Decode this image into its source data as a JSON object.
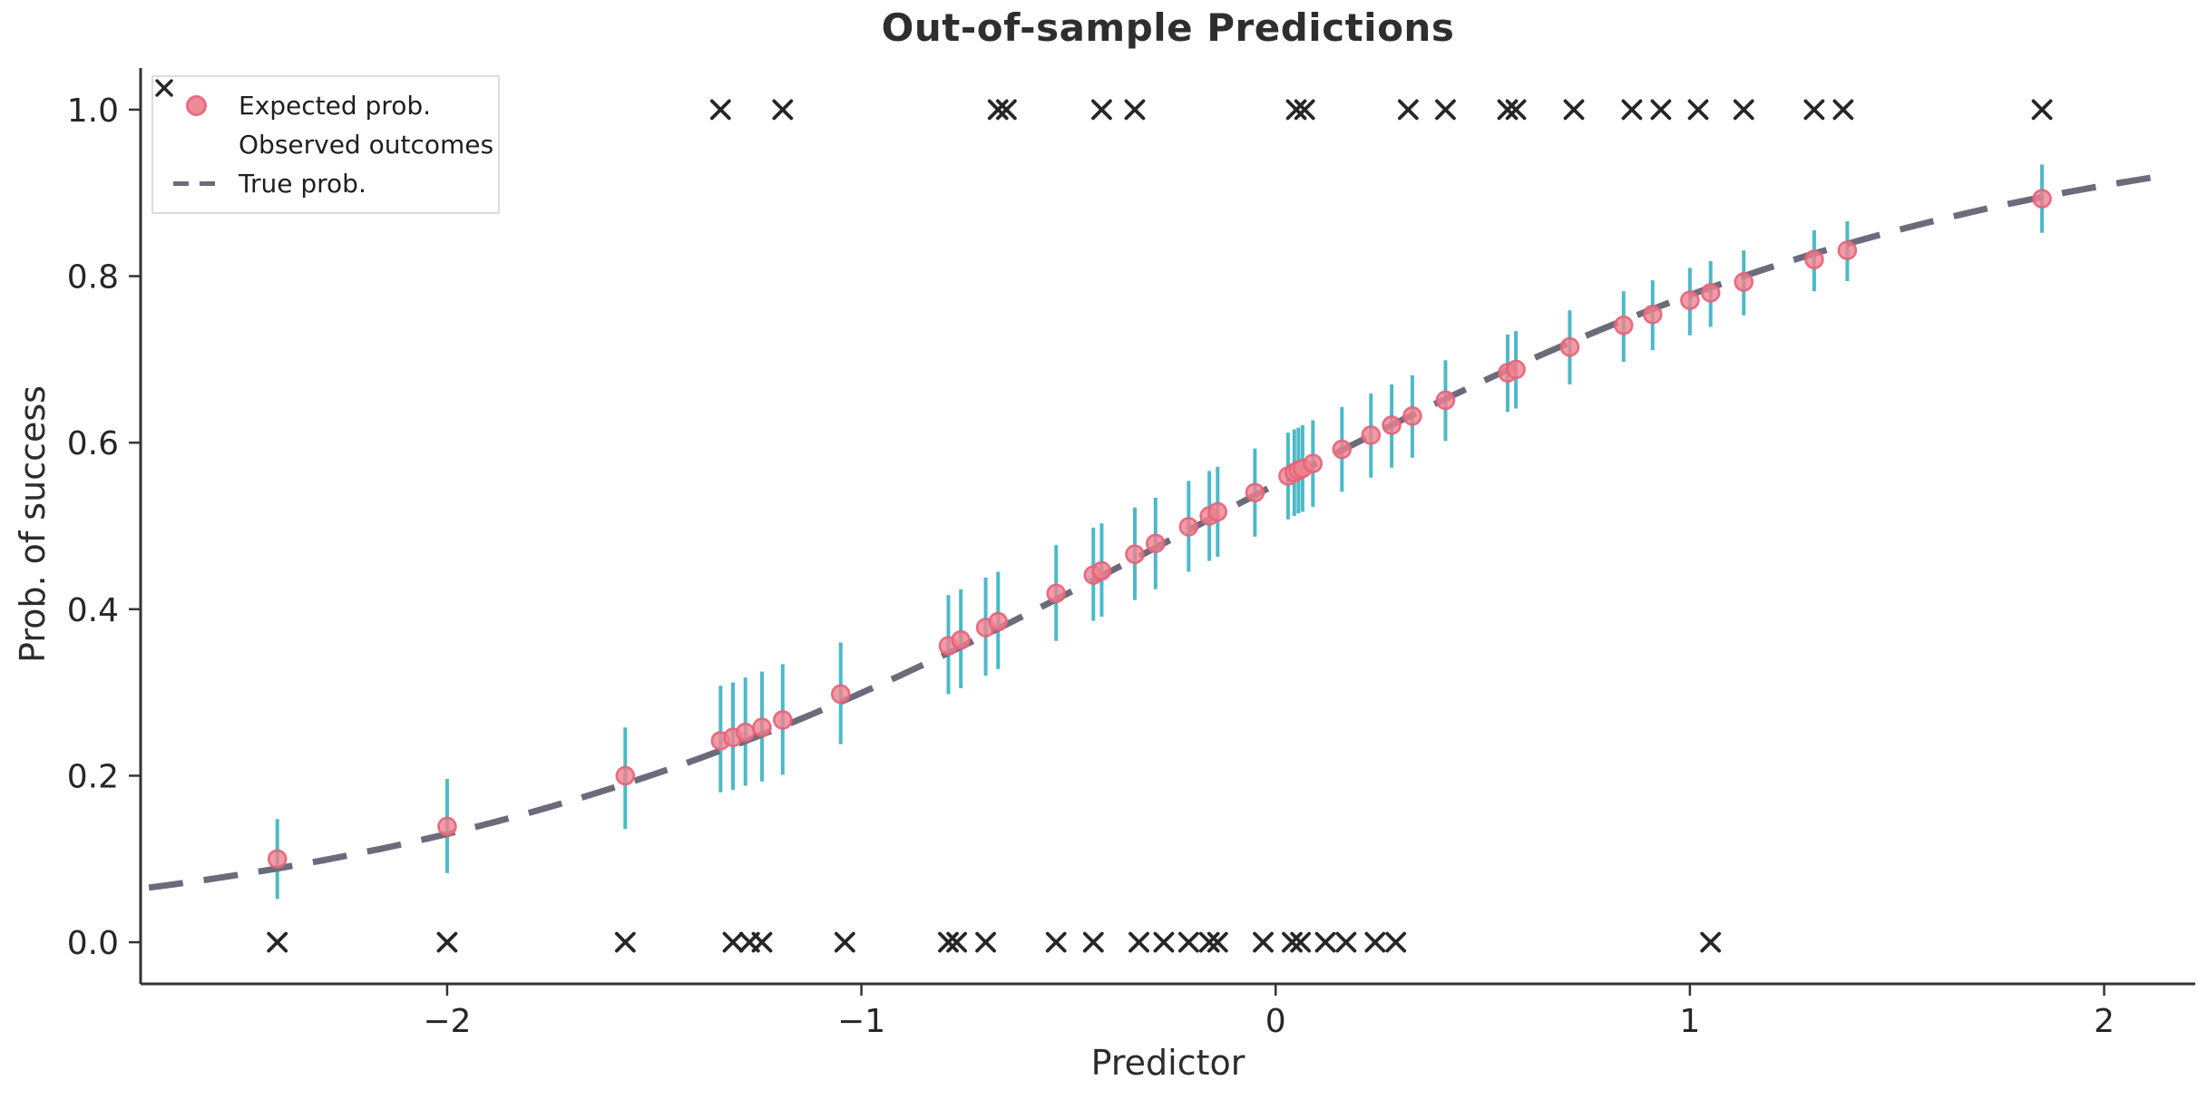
{
  "title": "Out-of-sample Predictions",
  "x_axis": {
    "label": "Predictor",
    "ticks": [
      -2,
      -1,
      0,
      1,
      2
    ]
  },
  "y_axis": {
    "label": "Prob. of success",
    "tick_labels": [
      "0.0",
      "0.2",
      "0.4",
      "0.6",
      "0.8",
      "1.0"
    ],
    "tick_values": [
      0,
      0.2,
      0.4,
      0.6,
      0.8,
      1.0
    ]
  },
  "legend": {
    "items": [
      {
        "icon": "dot-icon",
        "label": "Expected prob."
      },
      {
        "icon": "x-icon",
        "label": "Observed outcomes"
      },
      {
        "icon": "dashed-line-icon",
        "label": "True prob."
      }
    ]
  },
  "colors": {
    "expected_dot_fill": "#f0818f",
    "expected_dot_edge": "#e4627a",
    "error_bar": "#4db9c9",
    "true_curve": "#6a6c7b",
    "observed_x": "#262626",
    "axis": "#333333",
    "tick_label": "#262626"
  },
  "chart_data": {
    "type": "scatter",
    "title": "Out-of-sample Predictions",
    "xlabel": "Predictor",
    "ylabel": "Prob. of success",
    "xlim": [
      -2.74,
      2.22
    ],
    "ylim": [
      -0.05,
      1.05
    ],
    "grid": false,
    "legend_position": "upper left",
    "series": [
      {
        "name": "Expected prob.",
        "type": "scatter-errorbar",
        "points": [
          {
            "x": -2.41,
            "y": 0.1,
            "lo": 0.052,
            "hi": 0.148
          },
          {
            "x": -2.0,
            "y": 0.139,
            "lo": 0.083,
            "hi": 0.196
          },
          {
            "x": -1.57,
            "y": 0.2,
            "lo": 0.136,
            "hi": 0.258
          },
          {
            "x": -1.34,
            "y": 0.242,
            "lo": 0.18,
            "hi": 0.308
          },
          {
            "x": -1.31,
            "y": 0.246,
            "lo": 0.183,
            "hi": 0.312
          },
          {
            "x": -1.28,
            "y": 0.252,
            "lo": 0.188,
            "hi": 0.318
          },
          {
            "x": -1.24,
            "y": 0.258,
            "lo": 0.193,
            "hi": 0.325
          },
          {
            "x": -1.19,
            "y": 0.267,
            "lo": 0.201,
            "hi": 0.334
          },
          {
            "x": -1.05,
            "y": 0.298,
            "lo": 0.238,
            "hi": 0.36
          },
          {
            "x": -0.79,
            "y": 0.356,
            "lo": 0.298,
            "hi": 0.417
          },
          {
            "x": -0.76,
            "y": 0.363,
            "lo": 0.305,
            "hi": 0.424
          },
          {
            "x": -0.7,
            "y": 0.378,
            "lo": 0.32,
            "hi": 0.438
          },
          {
            "x": -0.67,
            "y": 0.385,
            "lo": 0.328,
            "hi": 0.445
          },
          {
            "x": -0.53,
            "y": 0.419,
            "lo": 0.362,
            "hi": 0.477
          },
          {
            "x": -0.44,
            "y": 0.441,
            "lo": 0.386,
            "hi": 0.498
          },
          {
            "x": -0.42,
            "y": 0.446,
            "lo": 0.391,
            "hi": 0.503
          },
          {
            "x": -0.34,
            "y": 0.466,
            "lo": 0.411,
            "hi": 0.522
          },
          {
            "x": -0.29,
            "y": 0.479,
            "lo": 0.424,
            "hi": 0.534
          },
          {
            "x": -0.21,
            "y": 0.499,
            "lo": 0.445,
            "hi": 0.554
          },
          {
            "x": -0.16,
            "y": 0.512,
            "lo": 0.458,
            "hi": 0.566
          },
          {
            "x": -0.14,
            "y": 0.517,
            "lo": 0.463,
            "hi": 0.571
          },
          {
            "x": -0.05,
            "y": 0.54,
            "lo": 0.487,
            "hi": 0.593
          },
          {
            "x": 0.03,
            "y": 0.56,
            "lo": 0.508,
            "hi": 0.612
          },
          {
            "x": 0.045,
            "y": 0.564,
            "lo": 0.512,
            "hi": 0.616
          },
          {
            "x": 0.055,
            "y": 0.567,
            "lo": 0.515,
            "hi": 0.618
          },
          {
            "x": 0.065,
            "y": 0.569,
            "lo": 0.517,
            "hi": 0.621
          },
          {
            "x": 0.09,
            "y": 0.575,
            "lo": 0.523,
            "hi": 0.627
          },
          {
            "x": 0.16,
            "y": 0.592,
            "lo": 0.541,
            "hi": 0.643
          },
          {
            "x": 0.23,
            "y": 0.609,
            "lo": 0.558,
            "hi": 0.659
          },
          {
            "x": 0.28,
            "y": 0.621,
            "lo": 0.57,
            "hi": 0.67
          },
          {
            "x": 0.33,
            "y": 0.632,
            "lo": 0.582,
            "hi": 0.681
          },
          {
            "x": 0.41,
            "y": 0.651,
            "lo": 0.602,
            "hi": 0.699
          },
          {
            "x": 0.56,
            "y": 0.684,
            "lo": 0.637,
            "hi": 0.73
          },
          {
            "x": 0.58,
            "y": 0.688,
            "lo": 0.641,
            "hi": 0.734
          },
          {
            "x": 0.71,
            "y": 0.715,
            "lo": 0.67,
            "hi": 0.759
          },
          {
            "x": 0.84,
            "y": 0.741,
            "lo": 0.697,
            "hi": 0.782
          },
          {
            "x": 0.91,
            "y": 0.754,
            "lo": 0.711,
            "hi": 0.795
          },
          {
            "x": 1.0,
            "y": 0.771,
            "lo": 0.729,
            "hi": 0.81
          },
          {
            "x": 1.05,
            "y": 0.78,
            "lo": 0.739,
            "hi": 0.818
          },
          {
            "x": 1.13,
            "y": 0.793,
            "lo": 0.753,
            "hi": 0.831
          },
          {
            "x": 1.3,
            "y": 0.82,
            "lo": 0.782,
            "hi": 0.855
          },
          {
            "x": 1.38,
            "y": 0.831,
            "lo": 0.794,
            "hi": 0.866
          },
          {
            "x": 1.85,
            "y": 0.893,
            "lo": 0.852,
            "hi": 0.934
          }
        ]
      },
      {
        "name": "Observed outcomes",
        "type": "scatter-x",
        "y_one_x": [
          -1.34,
          -1.19,
          -0.67,
          -0.65,
          -0.42,
          -0.34,
          0.05,
          0.07,
          0.32,
          0.41,
          0.56,
          0.58,
          0.72,
          0.86,
          0.93,
          1.02,
          1.13,
          1.3,
          1.37,
          1.85
        ],
        "y_zero_x": [
          -2.41,
          -2.0,
          -1.57,
          -1.31,
          -1.27,
          -1.24,
          -1.04,
          -0.79,
          -0.77,
          -0.7,
          -0.53,
          -0.44,
          -0.33,
          -0.27,
          -0.21,
          -0.16,
          -0.14,
          -0.03,
          0.04,
          0.06,
          0.12,
          0.17,
          0.24,
          0.29,
          1.05
        ]
      },
      {
        "name": "True prob.",
        "type": "logistic-curve",
        "intercept": 0.2,
        "slope": 1.05,
        "x_range": [
          -2.72,
          2.15
        ]
      }
    ]
  }
}
